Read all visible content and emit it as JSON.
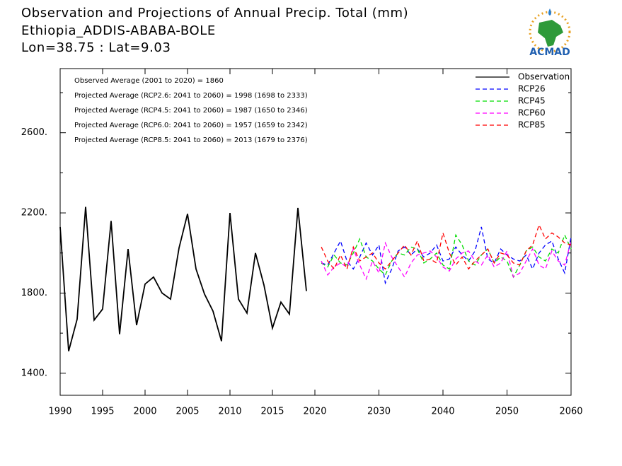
{
  "chart_data": {
    "type": "line",
    "title": [
      "Observation and Projections of Annual Precip. Total (mm)",
      "Ethiopia_ADDIS-ABABA-BOLE",
      "Lon=38.75 : Lat=9.03"
    ],
    "logo": "ACMAD",
    "annotations": [
      "Observed Average (2001 to 2020) = 1860",
      "Projected Average (RCP2.6: 2041 to 2060) = 1998 (1698 to 2333)",
      "Projected Average (RCP4.5: 2041 to 2060) = 1987 (1650 to 2346)",
      "Projected Average (RCP6.0: 2041 to 2060) = 1957 (1659 to 2342)",
      "Projected Average (RCP8.5: 2041 to 2060) = 2013 (1679 to 2376)"
    ],
    "xlim": [
      1990,
      2060
    ],
    "xticks": [
      1990,
      1995,
      2000,
      2005,
      2010,
      2015,
      2020,
      2030,
      2040,
      2050,
      2060
    ],
    "ylim": [
      1290,
      2920
    ],
    "yticks": [
      {
        "value": 1400,
        "label": "1400."
      },
      {
        "value": 1800,
        "label": "1800."
      },
      {
        "value": 2200,
        "label": "2200."
      },
      {
        "value": 2600,
        "label": "2600."
      }
    ],
    "yminorticks": [
      1600,
      2000,
      2400,
      2800
    ],
    "legend": "upper right",
    "series": [
      {
        "name": "Observation",
        "color": "#000000",
        "dashed": false,
        "x": [
          1990,
          1991,
          1992,
          1993,
          1994,
          1995,
          1996,
          1997,
          1998,
          1999,
          2000,
          2001,
          2002,
          2003,
          2004,
          2005,
          2006,
          2007,
          2008,
          2009,
          2010,
          2011,
          2012,
          2013,
          2014,
          2015,
          2016,
          2017,
          2018,
          2019
        ],
        "values": [
          2130,
          1510,
          1670,
          2230,
          1665,
          1720,
          2160,
          1595,
          2020,
          1640,
          1845,
          1880,
          1800,
          1770,
          2025,
          2195,
          1920,
          1795,
          1710,
          1560,
          2200,
          1770,
          1700,
          2000,
          1840,
          1625,
          1755,
          1695,
          2225,
          1810
        ]
      },
      {
        "name": "RCP26",
        "color": "#0000ff",
        "dashed": true,
        "x": [
          2021,
          2022,
          2023,
          2024,
          2025,
          2026,
          2027,
          2028,
          2029,
          2030,
          2031,
          2032,
          2033,
          2034,
          2035,
          2036,
          2037,
          2038,
          2039,
          2040,
          2041,
          2042,
          2043,
          2044,
          2045,
          2046,
          2047,
          2048,
          2049,
          2050,
          2051,
          2052,
          2053,
          2054,
          2055,
          2056,
          2057,
          2058,
          2059,
          2060
        ],
        "values": [
          1950,
          1940,
          2000,
          2060,
          1960,
          1920,
          1980,
          2050,
          1990,
          2040,
          1850,
          1920,
          2010,
          2030,
          1990,
          2020,
          1980,
          2000,
          2040,
          1960,
          1970,
          2030,
          1990,
          1960,
          2010,
          2130,
          1970,
          1950,
          2020,
          1990,
          1970,
          1960,
          1990,
          1920,
          2000,
          2040,
          2060,
          1970,
          1900,
          2080
        ]
      },
      {
        "name": "RCP45",
        "color": "#00dd00",
        "dashed": true,
        "x": [
          2021,
          2022,
          2023,
          2024,
          2025,
          2026,
          2027,
          2028,
          2029,
          2030,
          2031,
          2032,
          2033,
          2034,
          2035,
          2036,
          2037,
          2038,
          2039,
          2040,
          2041,
          2042,
          2043,
          2044,
          2045,
          2046,
          2047,
          2048,
          2049,
          2050,
          2051,
          2052,
          2053,
          2054,
          2055,
          2056,
          2057,
          2058,
          2059,
          2060
        ],
        "values": [
          1950,
          1930,
          1990,
          1950,
          1940,
          2000,
          2070,
          1980,
          1960,
          1920,
          1890,
          1960,
          2000,
          1990,
          2030,
          2020,
          1950,
          1970,
          2000,
          1940,
          1920,
          2090,
          2040,
          1960,
          1940,
          1990,
          2020,
          1950,
          1980,
          1960,
          1880,
          1940,
          2010,
          2030,
          1980,
          1960,
          2020,
          2000,
          2090,
          2020
        ]
      },
      {
        "name": "RCP60",
        "color": "#ff00ff",
        "dashed": true,
        "x": [
          2021,
          2022,
          2023,
          2024,
          2025,
          2026,
          2027,
          2028,
          2029,
          2030,
          2031,
          2032,
          2033,
          2034,
          2035,
          2036,
          2037,
          2038,
          2039,
          2040,
          2041,
          2042,
          2043,
          2044,
          2045,
          2046,
          2047,
          2048,
          2049,
          2050,
          2051,
          2052,
          2053,
          2054,
          2055,
          2056,
          2057,
          2058,
          2059,
          2060
        ],
        "values": [
          1960,
          1890,
          1930,
          1950,
          1930,
          2020,
          1940,
          1870,
          1960,
          1900,
          2050,
          1980,
          1930,
          1880,
          1950,
          1990,
          2000,
          2010,
          1980,
          1930,
          1910,
          1970,
          2000,
          2010,
          1960,
          1940,
          1990,
          1930,
          1950,
          2010,
          1880,
          1900,
          1960,
          2020,
          1940,
          1920,
          2010,
          1960,
          1940,
          2060
        ]
      },
      {
        "name": "RCP85",
        "color": "#ff0000",
        "dashed": true,
        "x": [
          2021,
          2022,
          2023,
          2024,
          2025,
          2026,
          2027,
          2028,
          2029,
          2030,
          2031,
          2032,
          2033,
          2034,
          2035,
          2036,
          2037,
          2038,
          2039,
          2040,
          2041,
          2042,
          2043,
          2044,
          2045,
          2046,
          2047,
          2048,
          2049,
          2050,
          2051,
          2052,
          2053,
          2054,
          2055,
          2056,
          2057,
          2058,
          2059,
          2060
        ],
        "values": [
          2030,
          1960,
          1920,
          1990,
          1920,
          2030,
          1960,
          1980,
          2000,
          1950,
          1920,
          1960,
          2000,
          2040,
          1990,
          2060,
          1960,
          1970,
          1950,
          2100,
          2000,
          1940,
          1980,
          1920,
          1960,
          1990,
          2020,
          1950,
          2000,
          1990,
          1950,
          1940,
          2010,
          2040,
          2140,
          2070,
          2100,
          2080,
          2050,
          2040
        ]
      }
    ]
  }
}
